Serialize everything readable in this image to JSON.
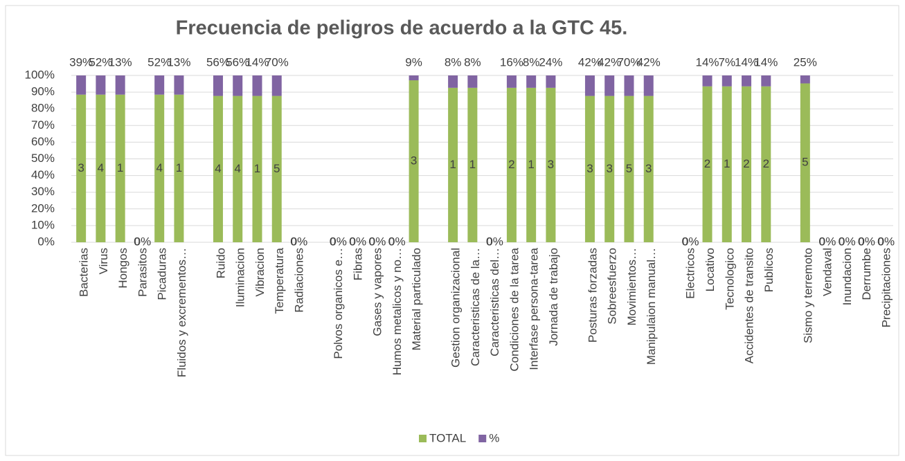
{
  "chart_data": {
    "type": "stacked_percent_bar",
    "title": "Frecuencia de peligros de acuerdo a la GTC 45.",
    "categories": [
      "Bacterias",
      "Virus",
      "Hongos",
      "Parasitos",
      "Picaduras",
      "Fluidos y excrementos…",
      null,
      "Ruido",
      "Iluminacion",
      "Vibracion",
      "Temperatura",
      "Radiaciones",
      null,
      "Polvos organicos e…",
      "Fibras",
      "Gases y vapores",
      "Humos metalicos y no…",
      "Material particulado",
      null,
      "Gestion organizacional",
      "Caracteristicas de la…",
      "Caracteristicas del…",
      "Condiciones de la tarea",
      "Interfase persona-tarea",
      "Jornada de trabajo",
      null,
      "Posturas forzadas",
      "Sobreesfuerzo",
      "Movimientos…",
      "Manipulaion manual…",
      null,
      "Electricos",
      "Locativo",
      "Tecnologico",
      "Accidentes de transito",
      "Publicos",
      null,
      "Sismo y terremoto",
      "Vendaval",
      "Inundacion",
      "Derrumbe",
      "Precipitaciones"
    ],
    "series": [
      {
        "name": "TOTAL",
        "color": "#9bbb59",
        "values": [
          3,
          4,
          1,
          0,
          4,
          1,
          null,
          4,
          4,
          1,
          5,
          0,
          null,
          0,
          0,
          0,
          0,
          3,
          null,
          1,
          1,
          0,
          2,
          1,
          3,
          null,
          3,
          3,
          5,
          3,
          null,
          0,
          2,
          1,
          2,
          2,
          null,
          5,
          0,
          0,
          0,
          0
        ]
      },
      {
        "name": "%",
        "color": "#8064a2",
        "values": [
          0.39,
          0.52,
          0.13,
          0,
          0.52,
          0.13,
          null,
          0.56,
          0.56,
          0.14,
          0.7,
          0,
          null,
          0,
          0,
          0,
          0,
          0.09,
          null,
          0.08,
          0.08,
          0,
          0.16,
          0.08,
          0.24,
          null,
          0.42,
          0.42,
          0.7,
          0.42,
          null,
          0,
          0.14,
          0.07,
          0.14,
          0.14,
          null,
          0.25,
          0,
          0,
          0,
          0
        ],
        "value_labels": [
          "39%",
          "52%",
          "13%",
          "0%",
          "52%",
          "13%",
          null,
          "56%",
          "56%",
          "14%",
          "70%",
          "0%",
          null,
          "0%",
          "0%",
          "0%",
          "0%",
          "9%",
          null,
          "8%",
          "8%",
          "0%",
          "16%",
          "8%",
          "24%",
          null,
          "42%",
          "42%",
          "70%",
          "42%",
          null,
          "0%",
          "14%",
          "7%",
          "14%",
          "14%",
          null,
          "25%",
          "0%",
          "0%",
          "0%",
          "0%"
        ]
      }
    ],
    "ylim": [
      0,
      100
    ],
    "yticks": [
      {
        "value": 0,
        "label": "0%"
      },
      {
        "value": 10,
        "label": "10%"
      },
      {
        "value": 20,
        "label": "20%"
      },
      {
        "value": 30,
        "label": "30%"
      },
      {
        "value": 40,
        "label": "40%"
      },
      {
        "value": 50,
        "label": "50%"
      },
      {
        "value": 60,
        "label": "60%"
      },
      {
        "value": 70,
        "label": "70%"
      },
      {
        "value": 80,
        "label": "80%"
      },
      {
        "value": 90,
        "label": "90%"
      },
      {
        "value": 100,
        "label": "100%"
      }
    ],
    "grid": true,
    "legend": "bottom"
  }
}
